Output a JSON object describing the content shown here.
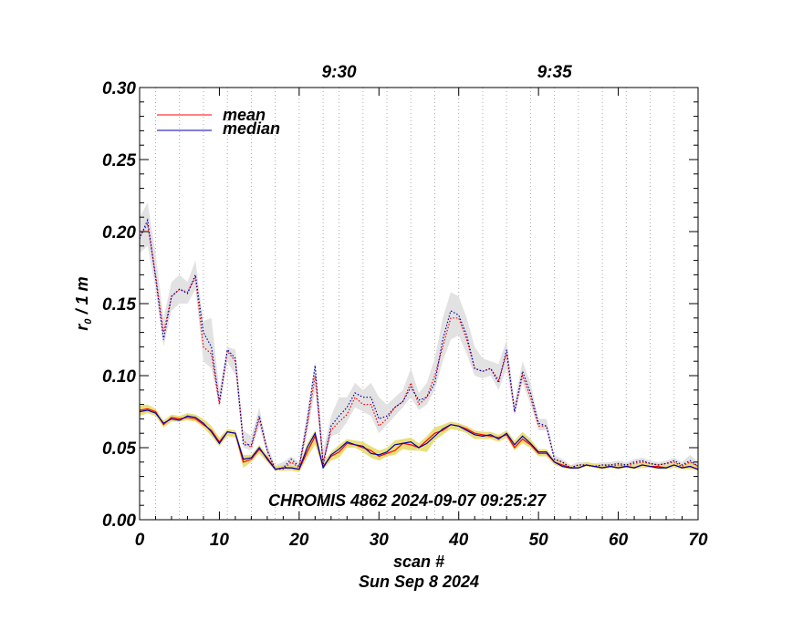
{
  "chart_data": {
    "type": "line",
    "title": "",
    "annotation": "CHROMIS 4862 2024-09-07 09:25:27",
    "xlabel": "scan #",
    "date_label": "Sun Sep  8 2024",
    "ylabel": "r",
    "ylabel_sub": "0",
    "ylabel_suffix": " / 1 m",
    "xlim": [
      0,
      70
    ],
    "ylim": [
      0.0,
      0.3
    ],
    "xticks": [
      "0",
      "10",
      "20",
      "30",
      "40",
      "50",
      "60",
      "70"
    ],
    "yticks": [
      "0.00",
      "0.05",
      "0.10",
      "0.15",
      "0.20",
      "0.25",
      "0.30"
    ],
    "top_axis": {
      "ticks": [
        {
          "label": "9:30",
          "x": 25
        },
        {
          "label": "9:35",
          "x": 52
        }
      ],
      "gridlines_x": [
        2,
        5,
        8,
        11,
        14,
        17,
        20,
        23,
        25,
        28,
        31,
        34,
        37,
        40,
        43,
        46,
        49,
        52,
        55,
        58,
        61,
        64,
        67,
        70
      ]
    },
    "legend": {
      "placement": "top-left",
      "items": [
        {
          "label": "mean",
          "color": "#ff0000"
        },
        {
          "label": "median",
          "color": "#0000b0"
        }
      ]
    },
    "series": [
      {
        "name": "mean",
        "color": "#ff0000",
        "x": [
          0,
          1,
          2,
          3,
          4,
          5,
          6,
          7,
          8,
          9,
          10,
          11,
          12,
          13,
          14,
          15,
          16,
          17,
          18,
          19,
          20,
          21,
          22,
          23,
          24,
          25,
          26,
          27,
          28,
          29,
          30,
          31,
          32,
          33,
          34,
          35,
          36,
          37,
          38,
          39,
          40,
          41,
          42,
          43,
          44,
          45,
          46,
          47,
          48,
          49,
          50,
          51,
          52,
          53,
          54,
          55,
          56,
          57,
          58,
          59,
          60,
          61,
          62,
          63,
          64,
          65,
          66,
          67,
          68,
          69,
          70
        ],
        "upper_mean": [
          0.197,
          0.205,
          0.17,
          0.13,
          0.155,
          0.16,
          0.158,
          0.168,
          0.12,
          0.115,
          0.08,
          0.117,
          0.11,
          0.055,
          0.05,
          0.07,
          0.048,
          0.035,
          0.035,
          0.04,
          0.036,
          0.065,
          0.1,
          0.04,
          0.062,
          0.068,
          0.073,
          0.085,
          0.08,
          0.08,
          0.065,
          0.07,
          0.078,
          0.082,
          0.095,
          0.08,
          0.085,
          0.1,
          0.12,
          0.14,
          0.14,
          0.125,
          0.105,
          0.103,
          0.105,
          0.097,
          0.115,
          0.075,
          0.1,
          0.085,
          0.065,
          0.065,
          0.042,
          0.04,
          0.036,
          0.038,
          0.038,
          0.037,
          0.038,
          0.037,
          0.038,
          0.037,
          0.039,
          0.04,
          0.039,
          0.038,
          0.039,
          0.04,
          0.037,
          0.04,
          0.037
        ],
        "upper_median": [
          0.195,
          0.208,
          0.168,
          0.125,
          0.155,
          0.16,
          0.157,
          0.17,
          0.13,
          0.12,
          0.082,
          0.118,
          0.112,
          0.052,
          0.052,
          0.072,
          0.048,
          0.035,
          0.036,
          0.042,
          0.037,
          0.068,
          0.107,
          0.038,
          0.065,
          0.072,
          0.078,
          0.088,
          0.085,
          0.085,
          0.07,
          0.072,
          0.078,
          0.082,
          0.092,
          0.083,
          0.085,
          0.095,
          0.125,
          0.145,
          0.142,
          0.128,
          0.105,
          0.103,
          0.105,
          0.095,
          0.118,
          0.075,
          0.103,
          0.088,
          0.067,
          0.065,
          0.042,
          0.04,
          0.036,
          0.038,
          0.038,
          0.037,
          0.038,
          0.038,
          0.039,
          0.038,
          0.04,
          0.041,
          0.039,
          0.038,
          0.039,
          0.041,
          0.038,
          0.041,
          0.037
        ],
        "upper_band_lo": [
          0.185,
          0.19,
          0.16,
          0.12,
          0.145,
          0.15,
          0.15,
          0.16,
          0.11,
          0.105,
          0.078,
          0.11,
          0.1,
          0.05,
          0.048,
          0.065,
          0.045,
          0.034,
          0.034,
          0.038,
          0.034,
          0.06,
          0.09,
          0.036,
          0.058,
          0.06,
          0.068,
          0.078,
          0.075,
          0.072,
          0.06,
          0.066,
          0.072,
          0.078,
          0.085,
          0.076,
          0.08,
          0.09,
          0.11,
          0.125,
          0.128,
          0.115,
          0.1,
          0.098,
          0.1,
          0.09,
          0.105,
          0.072,
          0.095,
          0.08,
          0.062,
          0.062,
          0.04,
          0.038,
          0.035,
          0.037,
          0.037,
          0.036,
          0.037,
          0.036,
          0.037,
          0.036,
          0.037,
          0.038,
          0.037,
          0.037,
          0.037,
          0.038,
          0.036,
          0.037,
          0.035
        ],
        "upper_band_hi": [
          0.21,
          0.22,
          0.185,
          0.14,
          0.165,
          0.17,
          0.165,
          0.18,
          0.138,
          0.14,
          0.09,
          0.12,
          0.118,
          0.062,
          0.058,
          0.078,
          0.052,
          0.038,
          0.04,
          0.044,
          0.04,
          0.075,
          0.11,
          0.048,
          0.072,
          0.085,
          0.085,
          0.095,
          0.09,
          0.095,
          0.085,
          0.08,
          0.085,
          0.09,
          0.105,
          0.088,
          0.095,
          0.112,
          0.14,
          0.158,
          0.155,
          0.14,
          0.12,
          0.112,
          0.11,
          0.108,
          0.125,
          0.082,
          0.11,
          0.095,
          0.07,
          0.07,
          0.045,
          0.042,
          0.038,
          0.04,
          0.04,
          0.039,
          0.04,
          0.04,
          0.041,
          0.04,
          0.042,
          0.043,
          0.041,
          0.04,
          0.041,
          0.043,
          0.04,
          0.045,
          0.04
        ],
        "lower_mean": [
          0.076,
          0.077,
          0.075,
          0.066,
          0.071,
          0.07,
          0.071,
          0.07,
          0.066,
          0.062,
          0.054,
          0.061,
          0.06,
          0.04,
          0.042,
          0.049,
          0.043,
          0.035,
          0.036,
          0.036,
          0.035,
          0.047,
          0.058,
          0.037,
          0.044,
          0.047,
          0.053,
          0.052,
          0.05,
          0.048,
          0.044,
          0.046,
          0.048,
          0.053,
          0.052,
          0.05,
          0.055,
          0.06,
          0.062,
          0.066,
          0.065,
          0.063,
          0.06,
          0.059,
          0.058,
          0.057,
          0.059,
          0.05,
          0.056,
          0.052,
          0.046,
          0.046,
          0.04,
          0.038,
          0.036,
          0.036,
          0.038,
          0.037,
          0.036,
          0.037,
          0.036,
          0.037,
          0.036,
          0.038,
          0.037,
          0.037,
          0.036,
          0.038,
          0.036,
          0.037,
          0.035
        ]
      },
      {
        "name": "median",
        "color": "#0000b0",
        "lower_median": [
          0.075,
          0.076,
          0.074,
          0.067,
          0.07,
          0.069,
          0.072,
          0.071,
          0.067,
          0.061,
          0.053,
          0.061,
          0.06,
          0.042,
          0.043,
          0.05,
          0.042,
          0.035,
          0.036,
          0.036,
          0.035,
          0.05,
          0.06,
          0.036,
          0.045,
          0.049,
          0.054,
          0.052,
          0.051,
          0.046,
          0.045,
          0.047,
          0.052,
          0.053,
          0.054,
          0.05,
          0.053,
          0.058,
          0.063,
          0.066,
          0.065,
          0.062,
          0.059,
          0.058,
          0.059,
          0.056,
          0.06,
          0.052,
          0.058,
          0.053,
          0.047,
          0.047,
          0.04,
          0.037,
          0.036,
          0.036,
          0.038,
          0.037,
          0.036,
          0.037,
          0.036,
          0.037,
          0.036,
          0.038,
          0.037,
          0.036,
          0.036,
          0.038,
          0.036,
          0.037,
          0.035
        ],
        "lower_band_lo": [
          0.072,
          0.074,
          0.072,
          0.064,
          0.068,
          0.068,
          0.069,
          0.068,
          0.064,
          0.058,
          0.051,
          0.058,
          0.057,
          0.036,
          0.04,
          0.046,
          0.04,
          0.034,
          0.034,
          0.034,
          0.033,
          0.043,
          0.052,
          0.035,
          0.041,
          0.043,
          0.05,
          0.05,
          0.047,
          0.043,
          0.041,
          0.044,
          0.045,
          0.049,
          0.048,
          0.048,
          0.047,
          0.055,
          0.059,
          0.063,
          0.062,
          0.06,
          0.056,
          0.056,
          0.056,
          0.054,
          0.057,
          0.048,
          0.053,
          0.05,
          0.044,
          0.044,
          0.038,
          0.036,
          0.035,
          0.035,
          0.037,
          0.036,
          0.035,
          0.036,
          0.035,
          0.036,
          0.035,
          0.036,
          0.036,
          0.035,
          0.035,
          0.036,
          0.035,
          0.035,
          0.034
        ],
        "lower_band_hi": [
          0.079,
          0.08,
          0.077,
          0.069,
          0.073,
          0.072,
          0.074,
          0.073,
          0.07,
          0.065,
          0.057,
          0.063,
          0.062,
          0.045,
          0.045,
          0.052,
          0.045,
          0.037,
          0.038,
          0.038,
          0.037,
          0.053,
          0.062,
          0.04,
          0.047,
          0.052,
          0.056,
          0.055,
          0.054,
          0.051,
          0.048,
          0.05,
          0.055,
          0.056,
          0.057,
          0.053,
          0.058,
          0.064,
          0.066,
          0.068,
          0.067,
          0.065,
          0.062,
          0.061,
          0.061,
          0.059,
          0.062,
          0.055,
          0.061,
          0.056,
          0.049,
          0.049,
          0.042,
          0.04,
          0.038,
          0.038,
          0.04,
          0.039,
          0.038,
          0.039,
          0.038,
          0.039,
          0.038,
          0.04,
          0.039,
          0.039,
          0.038,
          0.04,
          0.038,
          0.04,
          0.037
        ]
      }
    ]
  }
}
